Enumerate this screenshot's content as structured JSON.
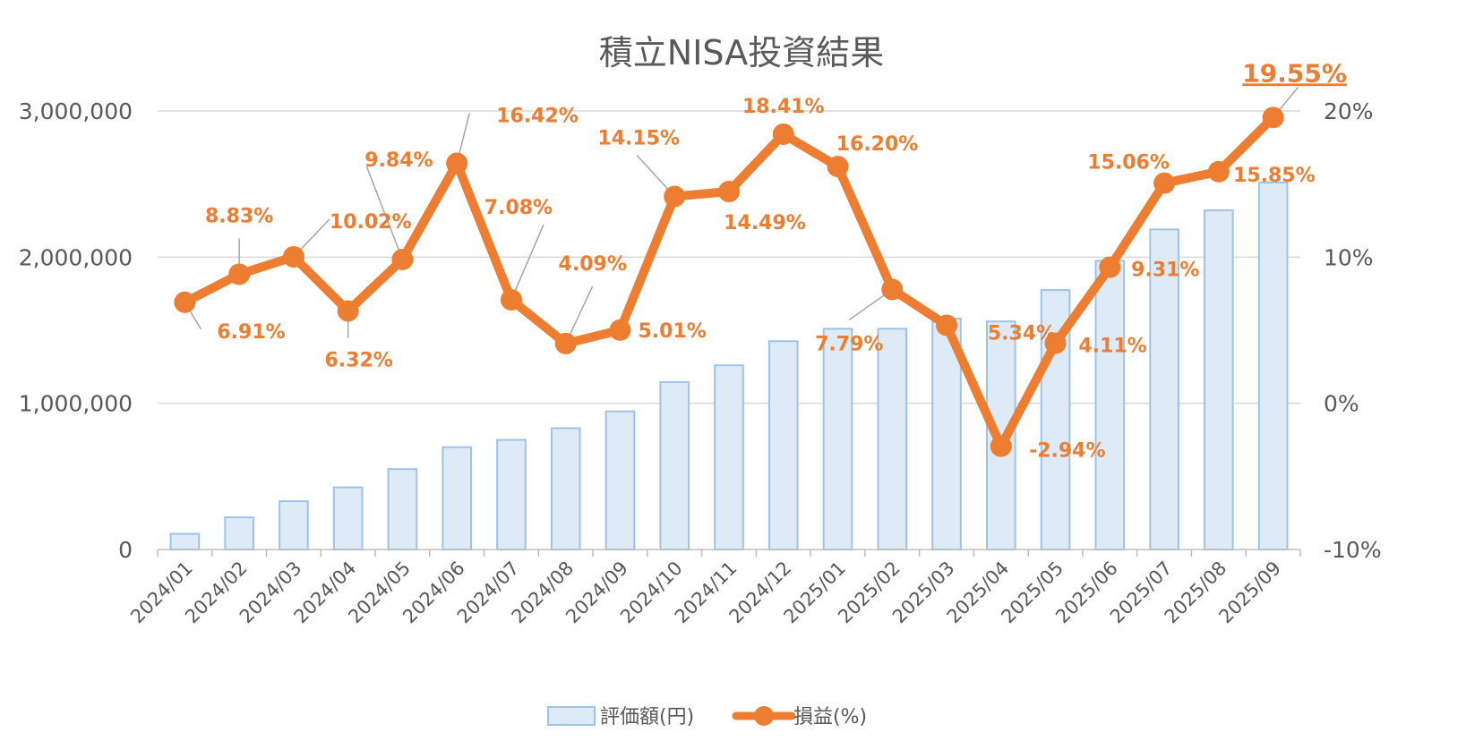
{
  "chart_data": {
    "type": "bar",
    "title": "積立NISA投資結果",
    "categories": [
      "2024/01",
      "2024/02",
      "2024/03",
      "2024/04",
      "2024/05",
      "2024/06",
      "2024/07",
      "2024/08",
      "2024/09",
      "2024/10",
      "2024/11",
      "2024/12",
      "2025/01",
      "2025/02",
      "2025/03",
      "2025/04",
      "2025/05",
      "2025/06",
      "2025/07",
      "2025/08",
      "2025/09"
    ],
    "series": [
      {
        "name": "評価額(円)",
        "type": "bar",
        "axis": "left",
        "color": "#DEEBF7",
        "stroke": "#9DC3E6",
        "values": [
          107000,
          220000,
          330000,
          425000,
          550000,
          700000,
          750000,
          830000,
          945000,
          1145000,
          1260000,
          1425000,
          1510000,
          1510000,
          1580000,
          1560000,
          1775000,
          1975000,
          2190000,
          2320000,
          2510000
        ]
      },
      {
        "name": "損益(%)",
        "type": "line",
        "axis": "right",
        "color": "#ED7D31",
        "values": [
          6.91,
          8.83,
          10.02,
          6.32,
          9.84,
          16.42,
          7.08,
          4.09,
          5.01,
          14.15,
          14.49,
          18.41,
          16.2,
          7.79,
          5.34,
          -2.94,
          4.11,
          9.31,
          15.06,
          15.85,
          19.55
        ],
        "labels": [
          "6.91%",
          "8.83%",
          "10.02%",
          "6.32%",
          "9.84%",
          "16.42%",
          "7.08%",
          "4.09%",
          "5.01%",
          "14.15%",
          "14.49%",
          "18.41%",
          "16.20%",
          "7.79%",
          "5.34%",
          "-2.94%",
          "4.11%",
          "9.31%",
          "15.06%",
          "15.85%",
          "19.55%"
        ]
      }
    ],
    "y_left": {
      "ticks": [
        "0",
        "1,000,000",
        "2,000,000",
        "3,000,000"
      ],
      "ylim": [
        0,
        3000000
      ]
    },
    "y_right": {
      "ticks": [
        "-10%",
        "0%",
        "10%",
        "20%"
      ],
      "ylim": [
        -10,
        20
      ]
    },
    "grid": true,
    "legend_position": "bottom"
  }
}
